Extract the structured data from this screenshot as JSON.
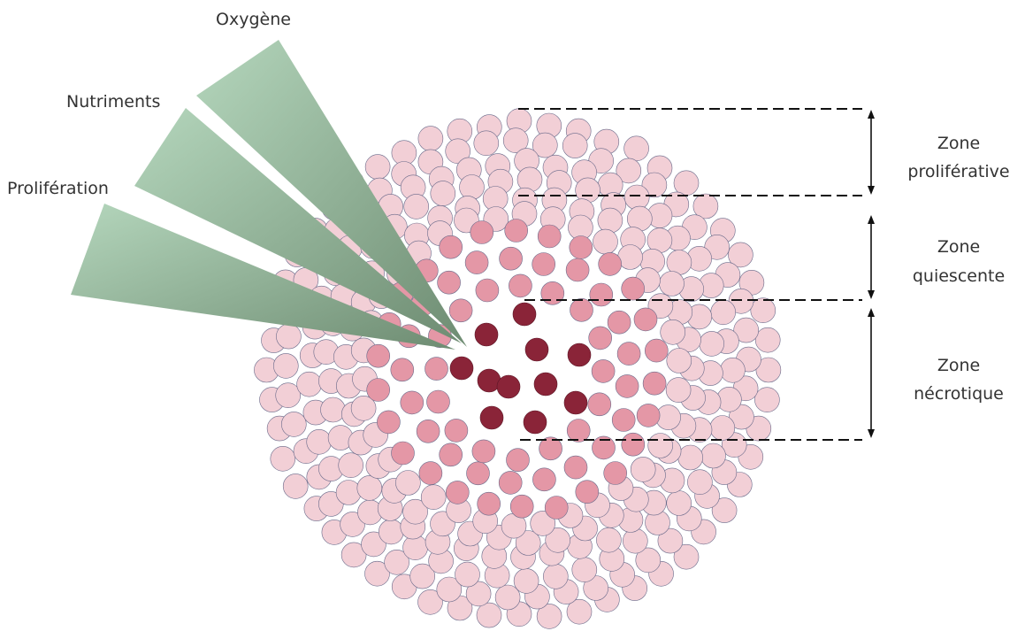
{
  "gradients": {
    "items": [
      {
        "label": "Oxygène"
      },
      {
        "label": "Nutriments"
      },
      {
        "label": "Prolifération"
      }
    ],
    "color_light": "#b4d6bc",
    "color_dark": "#6e8c72"
  },
  "zones": {
    "items": [
      {
        "line1": "Zone",
        "line2": "proliférative"
      },
      {
        "line1": "Zone",
        "line2": "quiescente"
      },
      {
        "line1": "Zone",
        "line2": "nécrotique"
      }
    ]
  },
  "cell_colors": {
    "proliferative": "#f2cfd6",
    "quiescent": "#e497a6",
    "necrotic": "#8a2438",
    "outline": "#6a6a8a"
  }
}
